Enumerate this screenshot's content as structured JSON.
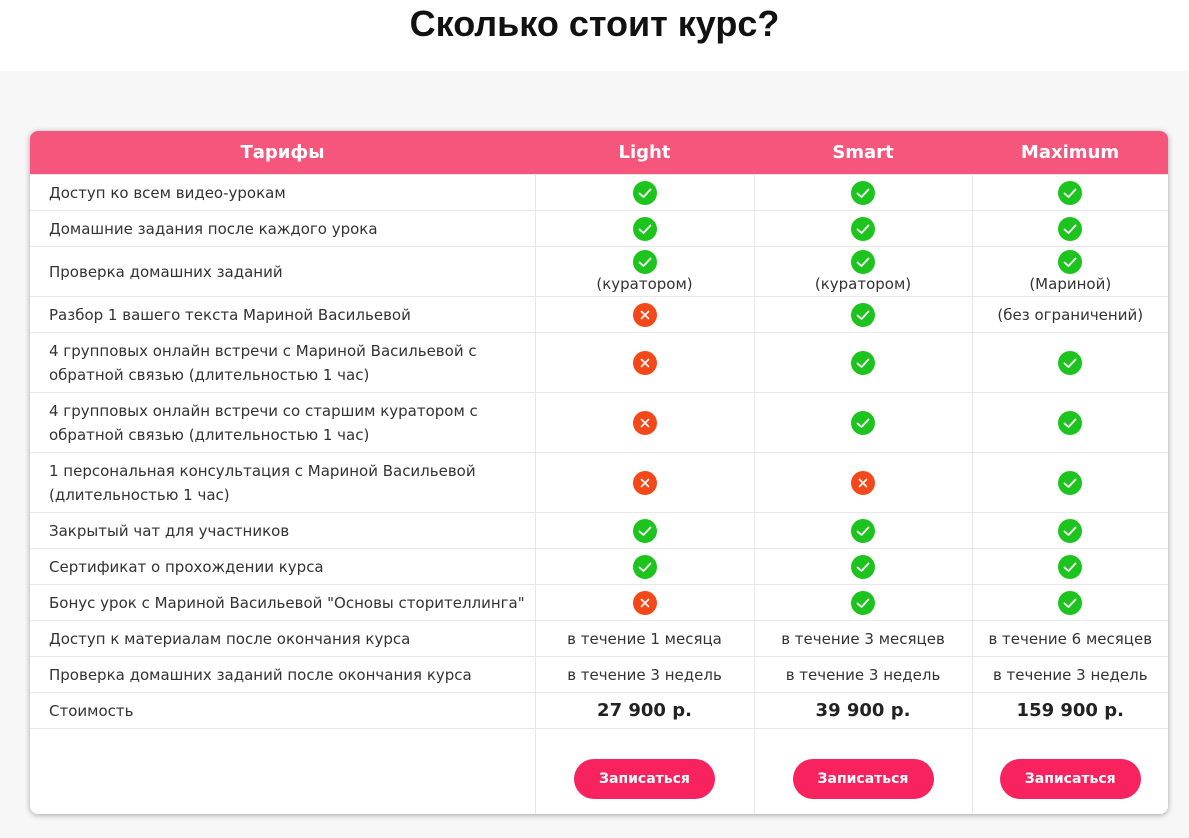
{
  "page_title": "Сколько стоит курс?",
  "colors": {
    "header": "#f7567c",
    "button": "#f7225e",
    "yes": "#1ec41e",
    "no": "#f2481a"
  },
  "table": {
    "headers": [
      "Тарифы",
      "Light",
      "Smart",
      "Maximum"
    ],
    "rows": [
      {
        "label": "Доступ ко всем видео-урокам",
        "cells": [
          {
            "icon": "yes"
          },
          {
            "icon": "yes"
          },
          {
            "icon": "yes"
          }
        ]
      },
      {
        "label": "Домашние задания после каждого урока",
        "cells": [
          {
            "icon": "yes"
          },
          {
            "icon": "yes"
          },
          {
            "icon": "yes"
          }
        ]
      },
      {
        "label": "Проверка домашних заданий",
        "cells": [
          {
            "icon": "yes",
            "note": "(куратором)"
          },
          {
            "icon": "yes",
            "note": "(куратором)"
          },
          {
            "icon": "yes",
            "note": "(Мариной)"
          }
        ]
      },
      {
        "label": "Разбор 1 вашего текста Мариной Васильевой",
        "cells": [
          {
            "icon": "no"
          },
          {
            "icon": "yes"
          },
          {
            "text": "(без ограничений)"
          }
        ]
      },
      {
        "label": "4 групповых онлайн встречи с Мариной Васильевой с обратной связью (длительностью 1 час)",
        "cells": [
          {
            "icon": "no"
          },
          {
            "icon": "yes"
          },
          {
            "icon": "yes"
          }
        ]
      },
      {
        "label": "4 групповых онлайн встречи со старшим куратором с обратной связью (длительностью 1 час)",
        "cells": [
          {
            "icon": "no"
          },
          {
            "icon": "yes"
          },
          {
            "icon": "yes"
          }
        ]
      },
      {
        "label": "1 персональная консультация с Мариной Васильевой (длительностью 1 час)",
        "cells": [
          {
            "icon": "no"
          },
          {
            "icon": "no"
          },
          {
            "icon": "yes"
          }
        ]
      },
      {
        "label": "Закрытый чат для участников",
        "cells": [
          {
            "icon": "yes"
          },
          {
            "icon": "yes"
          },
          {
            "icon": "yes"
          }
        ]
      },
      {
        "label": "Сертификат о прохождении курса",
        "cells": [
          {
            "icon": "yes"
          },
          {
            "icon": "yes"
          },
          {
            "icon": "yes"
          }
        ]
      },
      {
        "label": "Бонус урок с Мариной Васильевой \"Основы сторителлинга\"",
        "cells": [
          {
            "icon": "no"
          },
          {
            "icon": "yes"
          },
          {
            "icon": "yes"
          }
        ]
      },
      {
        "label": "Доступ к материалам после окончания курса",
        "cells": [
          {
            "text": "в течение 1 месяца"
          },
          {
            "text": "в течение 3 месяцев"
          },
          {
            "text": "в течение 6 месяцев"
          }
        ]
      },
      {
        "label": "Проверка домашних заданий после окончания курса",
        "cells": [
          {
            "text": "в течение 3 недель"
          },
          {
            "text": "в течение 3 недель"
          },
          {
            "text": "в течение 3 недель"
          }
        ]
      },
      {
        "label": "Стоимость",
        "cells": [
          {
            "price": "27 900 р."
          },
          {
            "price": "39 900 р."
          },
          {
            "price": "159 900 р."
          }
        ]
      }
    ],
    "buttons": [
      "Записаться",
      "Записаться",
      "Записаться"
    ]
  }
}
